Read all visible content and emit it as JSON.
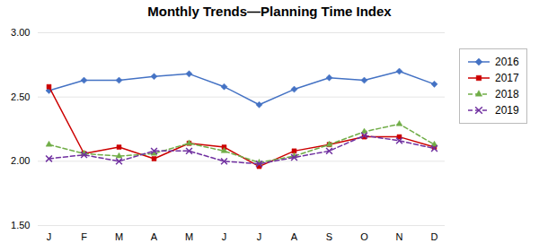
{
  "chart_data": {
    "type": "line",
    "title": "Monthly Trends—Planning Time Index",
    "categories": [
      "J",
      "F",
      "M",
      "A",
      "M",
      "J",
      "J",
      "A",
      "S",
      "O",
      "N",
      "D"
    ],
    "series": [
      {
        "name": "2016",
        "color": "#4472C4",
        "marker": "diamond",
        "line_style": "solid",
        "values": [
          2.55,
          2.63,
          2.63,
          2.66,
          2.68,
          2.58,
          2.44,
          2.56,
          2.65,
          2.63,
          2.7,
          2.6
        ]
      },
      {
        "name": "2017",
        "color": "#CC0000",
        "marker": "square",
        "line_style": "solid",
        "values": [
          2.58,
          2.06,
          2.11,
          2.02,
          2.14,
          2.11,
          1.96,
          2.08,
          2.13,
          2.19,
          2.19,
          2.11
        ]
      },
      {
        "name": "2018",
        "color": "#70AD47",
        "marker": "triangle",
        "line_style": "dashed",
        "values": [
          2.13,
          2.06,
          2.04,
          2.06,
          2.14,
          2.08,
          1.99,
          2.04,
          2.13,
          2.23,
          2.29,
          2.13
        ]
      },
      {
        "name": "2019",
        "color": "#7030A0",
        "marker": "x",
        "line_style": "dashed",
        "values": [
          2.02,
          2.05,
          2.0,
          2.08,
          2.08,
          2.0,
          1.98,
          2.03,
          2.08,
          2.2,
          2.16,
          2.1
        ]
      }
    ],
    "ylim": [
      1.5,
      3.0
    ],
    "yticks": [
      {
        "value": 1.5,
        "label": "1.50"
      },
      {
        "value": 2.0,
        "label": "2.00"
      },
      {
        "value": 2.5,
        "label": "2.50"
      },
      {
        "value": 3.0,
        "label": "3.00"
      }
    ],
    "grid": true,
    "legend": "right"
  }
}
